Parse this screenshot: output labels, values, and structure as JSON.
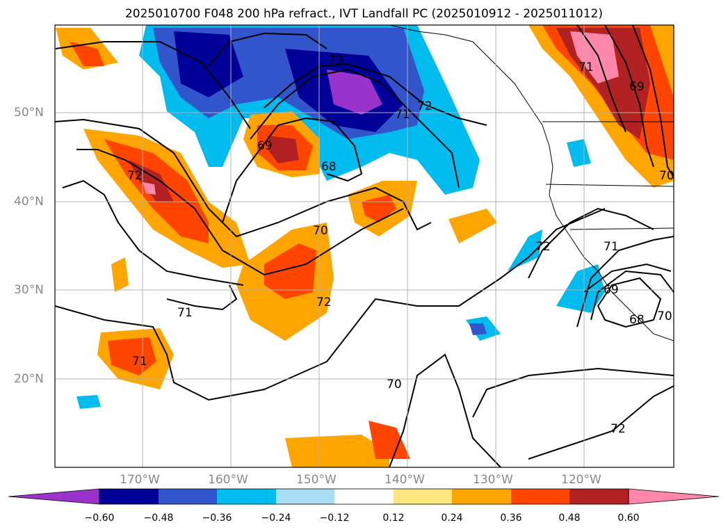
{
  "title": "2025010700 F048 200 hPa refract., IVT Landfall PC (2025010912 - 2025011012)",
  "map": {
    "lat_labels": [
      "50°N",
      "40°N",
      "30°N",
      "20°N"
    ],
    "lon_labels": [
      "170°W",
      "160°W",
      "150°W",
      "140°W",
      "130°W",
      "120°W"
    ],
    "contour_labels": [
      "73",
      "72",
      "71",
      "69",
      "68",
      "72",
      "70",
      "72",
      "71",
      "71",
      "72",
      "71",
      "69",
      "68",
      "70",
      "69",
      "70",
      "71",
      "70",
      "72"
    ]
  },
  "colorbar": {
    "ticks": [
      "−0.60",
      "−0.48",
      "−0.36",
      "−0.24",
      "−0.12",
      "0.12",
      "0.24",
      "0.36",
      "0.48",
      "0.60"
    ],
    "colors": [
      "#9933cc",
      "#000099",
      "#3355cc",
      "#00bbee",
      "#aaddf5",
      "#ffffff",
      "#ffe680",
      "#ffa500",
      "#ff4500",
      "#b22222",
      "#ff88aa",
      "#ff88aa"
    ]
  }
}
